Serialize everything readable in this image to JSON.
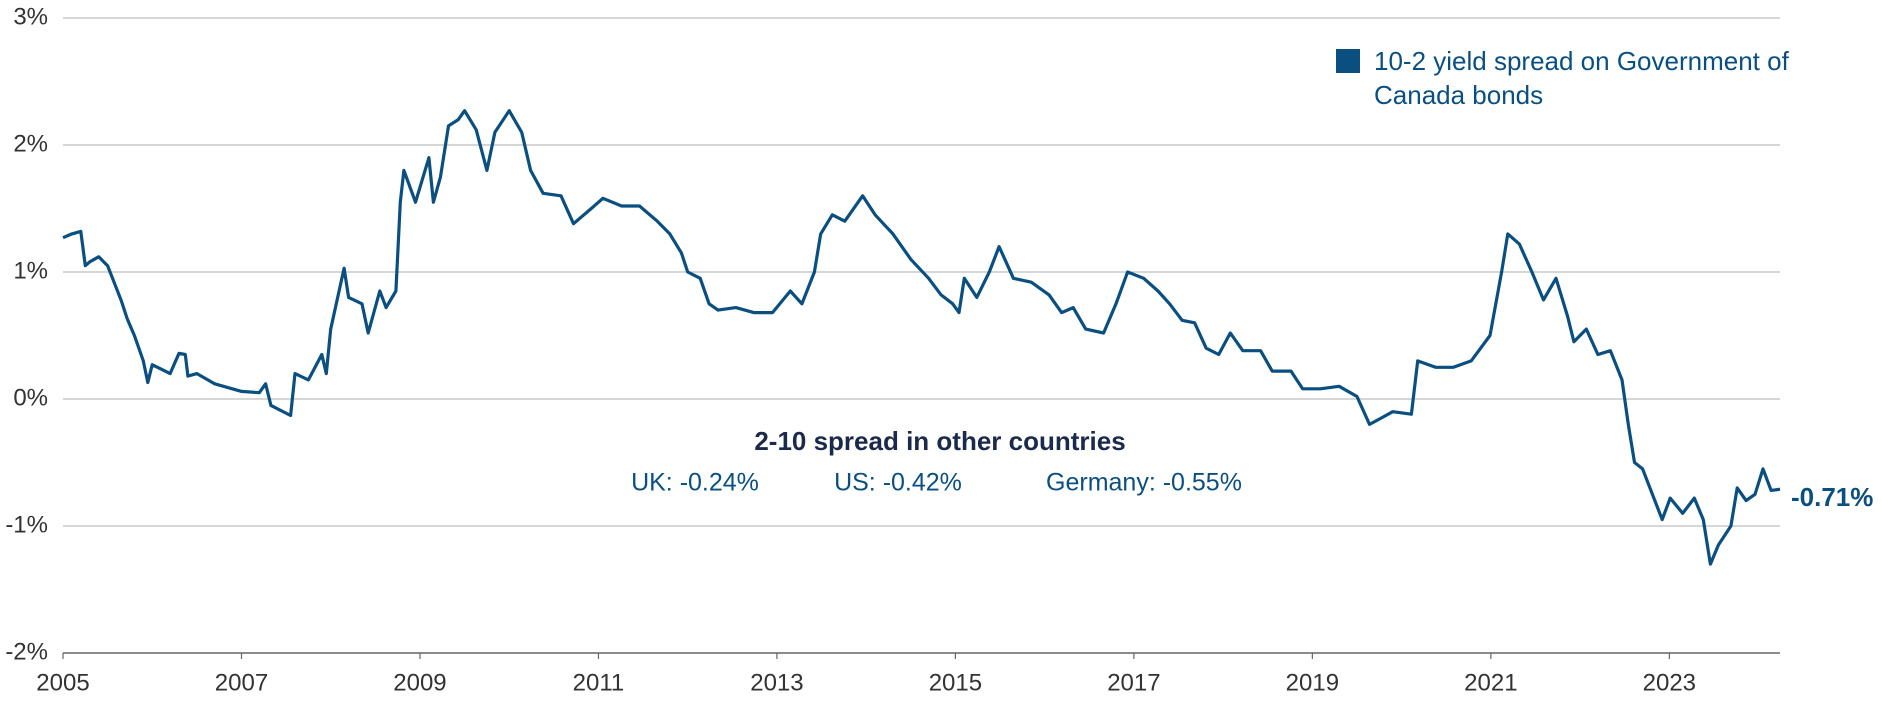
{
  "chart_data": {
    "type": "line",
    "x": [
      2005.0,
      2005.1,
      2005.2,
      2005.25,
      2005.3,
      2005.4,
      2005.5,
      2005.65,
      2005.72,
      2005.8,
      2005.9,
      2005.95,
      2006.0,
      2006.2,
      2006.3,
      2006.37,
      2006.4,
      2006.5,
      2006.7,
      2007.0,
      2007.2,
      2007.27,
      2007.33,
      2007.55,
      2007.6,
      2007.75,
      2007.9,
      2007.95,
      2008.0,
      2008.15,
      2008.2,
      2008.35,
      2008.42,
      2008.55,
      2008.62,
      2008.73,
      2008.78,
      2008.82,
      2008.95,
      2009.1,
      2009.15,
      2009.23,
      2009.32,
      2009.43,
      2009.5,
      2009.63,
      2009.75,
      2009.84,
      2010.0,
      2010.14,
      2010.24,
      2010.38,
      2010.58,
      2010.72,
      2010.92,
      2011.05,
      2011.26,
      2011.46,
      2011.66,
      2011.8,
      2011.93,
      2012.0,
      2012.14,
      2012.24,
      2012.34,
      2012.54,
      2012.74,
      2012.95,
      2013.15,
      2013.28,
      2013.42,
      2013.49,
      2013.62,
      2013.76,
      2013.96,
      2014.1,
      2014.3,
      2014.5,
      2014.7,
      2014.84,
      2014.97,
      2015.04,
      2015.1,
      2015.24,
      2015.38,
      2015.49,
      2015.65,
      2015.85,
      2016.05,
      2016.19,
      2016.32,
      2016.46,
      2016.66,
      2016.8,
      2016.93,
      2017.11,
      2017.27,
      2017.4,
      2017.54,
      2017.68,
      2017.81,
      2017.95,
      2018.08,
      2018.22,
      2018.42,
      2018.55,
      2018.76,
      2018.89,
      2019.09,
      2019.3,
      2019.5,
      2019.64,
      2019.77,
      2019.9,
      2020.11,
      2020.18,
      2020.38,
      2020.58,
      2020.78,
      2020.99,
      2021.12,
      2021.19,
      2021.32,
      2021.46,
      2021.59,
      2021.73,
      2021.86,
      2021.93,
      2022.07,
      2022.2,
      2022.34,
      2022.47,
      2022.54,
      2022.61,
      2022.7,
      2022.81,
      2022.92,
      2023.01,
      2023.15,
      2023.28,
      2023.38,
      2023.46,
      2023.55,
      2023.69,
      2023.76,
      2023.86,
      2023.96,
      2024.05,
      2024.14,
      2024.24
    ],
    "series": [
      {
        "name": "10-2 yield spread on Government of Canada bonds",
        "color": "#0b4f80",
        "values": [
          1.27,
          1.3,
          1.32,
          1.05,
          1.08,
          1.12,
          1.05,
          0.78,
          0.63,
          0.5,
          0.3,
          0.13,
          0.27,
          0.2,
          0.36,
          0.35,
          0.18,
          0.2,
          0.12,
          0.06,
          0.05,
          0.12,
          -0.05,
          -0.13,
          0.2,
          0.15,
          0.35,
          0.2,
          0.55,
          1.03,
          0.8,
          0.75,
          0.52,
          0.85,
          0.72,
          0.85,
          1.55,
          1.8,
          1.55,
          1.9,
          1.55,
          1.75,
          2.15,
          2.2,
          2.27,
          2.12,
          1.8,
          2.1,
          2.27,
          2.1,
          1.8,
          1.62,
          1.6,
          1.38,
          1.5,
          1.58,
          1.52,
          1.52,
          1.4,
          1.3,
          1.15,
          1.0,
          0.95,
          0.75,
          0.7,
          0.72,
          0.68,
          0.68,
          0.85,
          0.75,
          1.0,
          1.3,
          1.45,
          1.4,
          1.6,
          1.45,
          1.3,
          1.1,
          0.95,
          0.82,
          0.75,
          0.68,
          0.95,
          0.8,
          1.0,
          1.2,
          0.95,
          0.92,
          0.82,
          0.68,
          0.72,
          0.55,
          0.52,
          0.75,
          1.0,
          0.95,
          0.85,
          0.75,
          0.62,
          0.6,
          0.4,
          0.35,
          0.52,
          0.38,
          0.38,
          0.22,
          0.22,
          0.08,
          0.08,
          0.1,
          0.02,
          -0.2,
          -0.15,
          -0.1,
          -0.12,
          0.3,
          0.25,
          0.25,
          0.3,
          0.5,
          1.0,
          1.3,
          1.22,
          1.0,
          0.78,
          0.95,
          0.65,
          0.45,
          0.55,
          0.35,
          0.38,
          0.15,
          -0.2,
          -0.5,
          -0.55,
          -0.75,
          -0.95,
          -0.78,
          -0.9,
          -0.78,
          -0.95,
          -1.3,
          -1.15,
          -1.0,
          -0.7,
          -0.8,
          -0.75,
          -0.55,
          -0.72,
          -0.71
        ]
      }
    ],
    "xlim": [
      2005,
      2024.24
    ],
    "xticks": [
      2005,
      2007,
      2009,
      2011,
      2013,
      2015,
      2017,
      2019,
      2021,
      2023
    ],
    "ylim": [
      -2,
      3
    ],
    "yticks": [
      {
        "value": -2,
        "label": "-2%"
      },
      {
        "value": -1,
        "label": "-1%"
      },
      {
        "value": 0,
        "label": "0%"
      },
      {
        "value": 1,
        "label": "1%"
      },
      {
        "value": 2,
        "label": "2%"
      },
      {
        "value": 3,
        "label": "3%"
      }
    ],
    "grid": true,
    "legend": "top-right",
    "annotations": {
      "title": "2-10 spread in other countries",
      "items": [
        "UK: -0.24%",
        "US: -0.42%",
        "Germany: -0.55%"
      ],
      "end_label": "-0.71%"
    }
  }
}
